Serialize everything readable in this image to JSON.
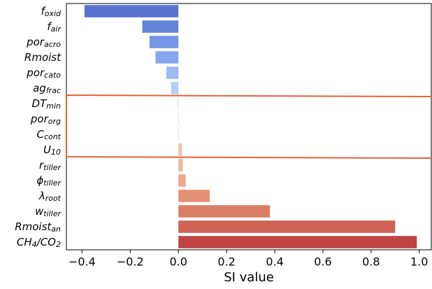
{
  "chart_data": {
    "type": "barh",
    "categories": [
      [
        "f",
        "oxid"
      ],
      [
        "f",
        "air"
      ],
      [
        "por",
        "acro"
      ],
      [
        "Rmoist"
      ],
      [
        "por",
        "cato"
      ],
      [
        "ag",
        "frac"
      ],
      [
        "DT",
        "min"
      ],
      [
        "por",
        "org"
      ],
      [
        "C",
        "cont"
      ],
      [
        "U",
        "10"
      ],
      [
        "r",
        "tiller"
      ],
      [
        "ϕ",
        "tiller"
      ],
      [
        "λ",
        "root"
      ],
      [
        "w",
        "tiller"
      ],
      [
        "Rmoist",
        "an"
      ],
      [
        "CH",
        "4",
        "/CO",
        "2"
      ]
    ],
    "values": [
      -0.39,
      -0.15,
      -0.12,
      -0.095,
      -0.05,
      -0.03,
      -0.002,
      0,
      0,
      0.015,
      0.018,
      0.03,
      0.13,
      0.38,
      0.9,
      0.99
    ],
    "colors": [
      "#5a72cd",
      "#6483da",
      "#7596e6",
      "#86a7ef",
      "#9dbaf5",
      "#b2ccfb",
      "#c7d7f0",
      "#dcdddd",
      "#e8d6cb",
      "#edc4b0",
      "#efb79c",
      "#eda78a",
      "#e49276",
      "#da7f66",
      "#ce6355",
      "#bf4343"
    ],
    "xlabel": "SI value",
    "xlim": [
      -0.465,
      1.05
    ],
    "xticks": [
      {
        "value": -0.4,
        "label": "−0.4"
      },
      {
        "value": -0.2,
        "label": "−0.2"
      },
      {
        "value": 0,
        "label": "0.0"
      },
      0.2,
      0.4,
      0.6,
      0.8,
      {
        "value": 1,
        "label": "1.0"
      }
    ]
  }
}
